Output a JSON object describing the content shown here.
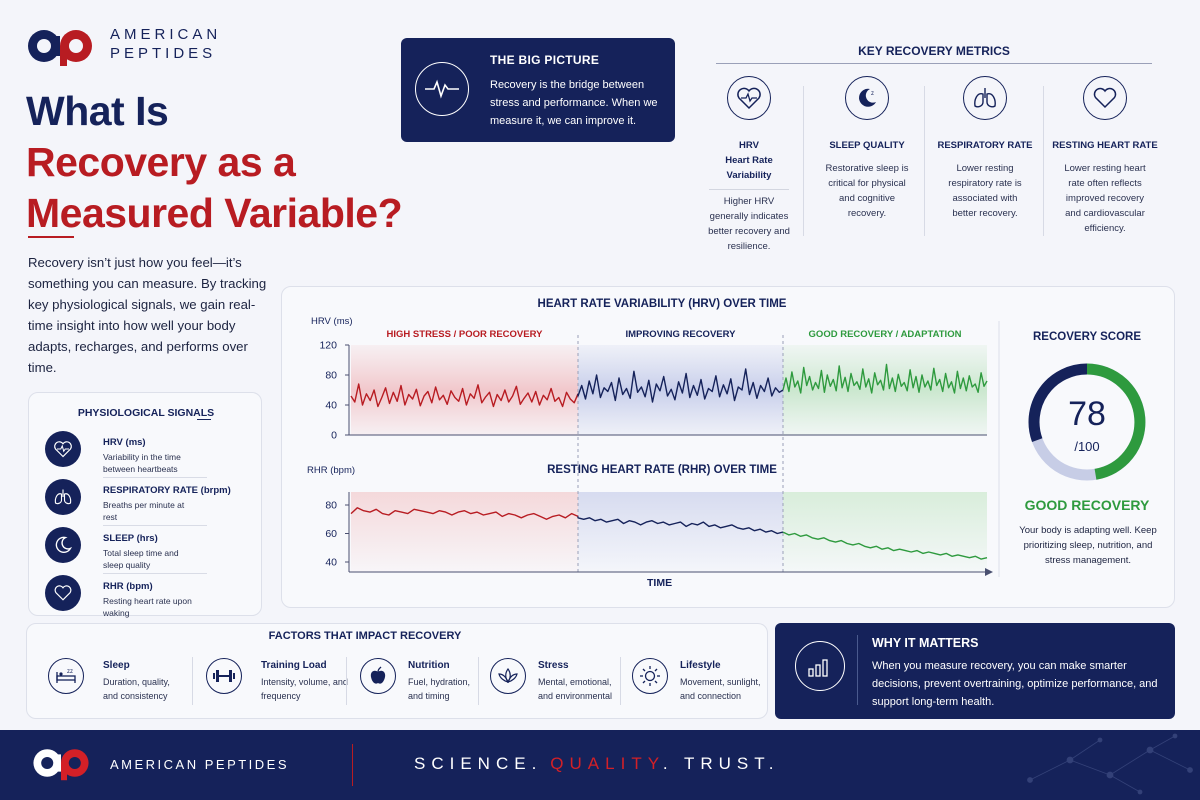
{
  "brand": {
    "name_line1": "AMERICAN",
    "name_line2": "PEPTIDES",
    "logo_text": "ap"
  },
  "hero": {
    "title_line1": "What Is",
    "title_line2": "Recovery as a",
    "title_line3": "Measured Variable?",
    "intro": "Recovery isn’t just how you feel—it’s something you can measure. By tracking key physiological signals, we gain real-time insight into how well your body adapts, recharges, and performs over time."
  },
  "big_picture": {
    "title": "THE BIG PICTURE",
    "text": "Recovery is the bridge between stress and performance. When we measure it, we can improve it.",
    "icon": "heartbeat-icon"
  },
  "key_metrics": {
    "title": "KEY RECOVERY METRICS",
    "items": [
      {
        "title": "HRV",
        "subtitle": "Heart Rate Variability",
        "desc": "Higher HRV generally indicates better recovery and resilience.",
        "icon": "heart-pulse-icon"
      },
      {
        "title": "SLEEP QUALITY",
        "desc": "Restorative sleep is critical for physical and cognitive recovery.",
        "icon": "moon-icon"
      },
      {
        "title": "RESPIRATORY RATE",
        "desc": "Lower resting respiratory rate is associated with better recovery.",
        "icon": "lungs-icon"
      },
      {
        "title": "RESTING HEART RATE",
        "desc": "Lower resting heart rate often reflects improved recovery and cardiovascular efficiency.",
        "icon": "heart-icon"
      }
    ]
  },
  "signals": {
    "title": "PHYSIOLOGICAL SIGNALS",
    "items": [
      {
        "title": "HRV (ms)",
        "desc": "Variability in the time between heartbeats",
        "icon": "heart-pulse-icon"
      },
      {
        "title": "RESPIRATORY RATE (brpm)",
        "desc": "Breaths per minute at rest",
        "icon": "lungs-icon"
      },
      {
        "title": "SLEEP (hrs)",
        "desc": "Total sleep time and sleep quality",
        "icon": "moon-icon"
      },
      {
        "title": "RHR (bpm)",
        "desc": "Resting heart rate upon waking",
        "icon": "heart-icon"
      }
    ]
  },
  "chart_data": [
    {
      "type": "line",
      "title": "HEART RATE VARIABILITY (HRV) OVER TIME",
      "ylabel": "HRV (ms)",
      "ylim": [
        0,
        120
      ],
      "yticks": [
        0,
        40,
        80,
        120
      ],
      "phases": [
        "HIGH STRESS / POOR RECOVERY",
        "IMPROVING RECOVERY",
        "GOOD RECOVERY / ADAPTATION"
      ],
      "series": [
        {
          "values": [
            52,
            44,
            68,
            40,
            55,
            46,
            60,
            38,
            50,
            63,
            42,
            57,
            45,
            66,
            40,
            54,
            48,
            61,
            39,
            52,
            58,
            43,
            64,
            47,
            53,
            41,
            59,
            50,
            45,
            62,
            40,
            55,
            49,
            67,
            43,
            51,
            57,
            38,
            54,
            46,
            60,
            44,
            52,
            65,
            41,
            49,
            56,
            44,
            58,
            40,
            53,
            47,
            62,
            45,
            50,
            38,
            57,
            48,
            43,
            55
          ]
        },
        {
          "values": [
            52,
            66,
            48,
            72,
            55,
            80,
            50,
            63,
            58,
            70,
            46,
            76,
            54,
            62,
            49,
            85,
            57,
            64,
            51,
            73,
            44,
            68,
            59,
            78,
            52,
            61,
            47,
            71,
            56,
            82,
            50,
            66,
            53,
            74,
            48,
            62,
            58,
            79,
            51,
            67,
            55,
            75,
            46,
            64,
            60,
            88,
            54,
            70,
            49,
            66,
            58,
            76,
            52,
            63,
            57,
            60
          ]
        },
        {
          "values": [
            60,
            76,
            58,
            84,
            64,
            72,
            56,
            90,
            66,
            78,
            60,
            70,
            62,
            86,
            57,
            80,
            65,
            74,
            59,
            92,
            63,
            77,
            58,
            82,
            66,
            71,
            61,
            88,
            64,
            75,
            56,
            83,
            67,
            73,
            60,
            94,
            62,
            76,
            58,
            81,
            65,
            70,
            59,
            87,
            63,
            78,
            57,
            80,
            64,
            72,
            60,
            89,
            66,
            74,
            58,
            82,
            63,
            71,
            56,
            85,
            62,
            76,
            59,
            79,
            64,
            68,
            57,
            83,
            65,
            72
          ]
        }
      ]
    },
    {
      "type": "line",
      "title": "RESTING HEART RATE (RHR) OVER TIME",
      "ylabel": "RHR (bpm)",
      "xlabel": "TIME",
      "ylim": [
        40,
        80
      ],
      "yticks": [
        40,
        60,
        80
      ],
      "series": [
        {
          "values": [
            74,
            78,
            76,
            75,
            77,
            74,
            73,
            76,
            75,
            74,
            77,
            76,
            75,
            74,
            76,
            75,
            73,
            75,
            76,
            74,
            75,
            73,
            74,
            75,
            72,
            74,
            73,
            71,
            73,
            74,
            72,
            70,
            72,
            73,
            71,
            74,
            72
          ]
        },
        {
          "values": [
            71,
            70,
            71,
            69,
            70,
            68,
            69,
            70,
            67,
            69,
            68,
            66,
            68,
            69,
            67,
            68,
            66,
            67,
            68,
            65,
            67,
            66,
            68,
            65,
            66,
            64,
            65,
            66,
            64,
            63,
            64,
            62,
            63,
            61,
            62,
            60,
            61
          ]
        },
        {
          "values": [
            61,
            59,
            60,
            58,
            59,
            57,
            56,
            57,
            55,
            54,
            55,
            53,
            52,
            53,
            51,
            50,
            51,
            49,
            50,
            48,
            49,
            48,
            47,
            48,
            46,
            47,
            46,
            45,
            46,
            44,
            45,
            44,
            43,
            44,
            42,
            43
          ]
        }
      ]
    }
  ],
  "score": {
    "title": "RECOVERY SCORE",
    "value": "78",
    "max": "/100",
    "fraction": 0.78,
    "status": "GOOD RECOVERY",
    "message": "Your body is adapting well. Keep prioritizing sleep, nutrition, and stress management."
  },
  "factors": {
    "title": "FACTORS THAT IMPACT RECOVERY",
    "items": [
      {
        "title": "Sleep",
        "desc": "Duration, quality, and consistency",
        "icon": "bed-icon"
      },
      {
        "title": "Training Load",
        "desc": "Intensity, volume, and frequency",
        "icon": "dumbbell-icon"
      },
      {
        "title": "Nutrition",
        "desc": "Fuel, hydration, and timing",
        "icon": "apple-icon"
      },
      {
        "title": "Stress",
        "desc": "Mental, emotional, and environmental",
        "icon": "lotus-icon"
      },
      {
        "title": "Lifestyle",
        "desc": "Movement, sunlight, and connection",
        "icon": "sun-icon"
      }
    ]
  },
  "why": {
    "title": "WHY IT MATTERS",
    "text": "When you measure recovery, you can make smarter decisions, prevent overtraining, optimize performance, and support long-term health.",
    "icon": "bar-chart-icon"
  },
  "footer": {
    "brand": "AMERICAN PEPTIDES",
    "tagline_1": "SCIENCE.",
    "tagline_2": "QUALITY",
    "tagline_3": ". TRUST."
  },
  "colors": {
    "navy": "#15225a",
    "red": "#b81c22",
    "green": "#2e9a3e",
    "light_navy": "#c7cde6"
  }
}
